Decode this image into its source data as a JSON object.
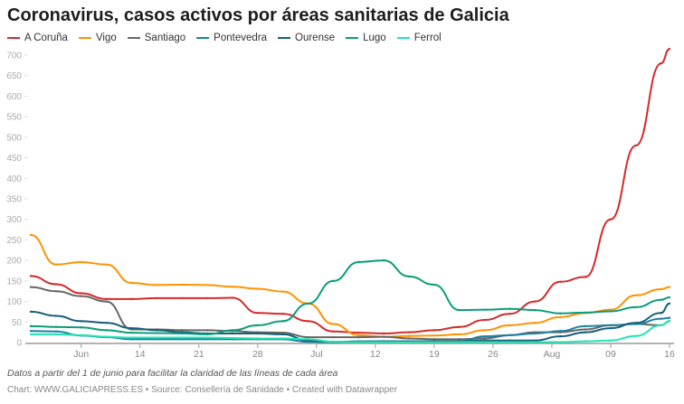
{
  "title": "Coronavirus, casos activos por áreas sanitarias de Galicia",
  "note": "Datos a partir del 1 de junio para facilitar la claridad de las líneas de cada área",
  "source": "Chart: WWW.GALICIAPRESS.ES • Source: Consellería de Sanidade • Created with Datawrapper",
  "chart_data": {
    "type": "line",
    "title": "Coronavirus, casos activos por áreas sanitarias de Galicia",
    "ylim": [
      0,
      720
    ],
    "xlim": [
      "2020-06-01",
      "2020-08-16"
    ],
    "yticks": [
      0,
      50,
      100,
      150,
      200,
      250,
      300,
      350,
      400,
      450,
      500,
      550,
      600,
      650,
      700
    ],
    "xticks": [
      {
        "date": "2020-06-07",
        "label": "Jun"
      },
      {
        "date": "2020-06-14",
        "label": "14"
      },
      {
        "date": "2020-06-21",
        "label": "21"
      },
      {
        "date": "2020-06-28",
        "label": "28"
      },
      {
        "date": "2020-07-05",
        "label": "Jul"
      },
      {
        "date": "2020-07-12",
        "label": "12"
      },
      {
        "date": "2020-07-19",
        "label": "19"
      },
      {
        "date": "2020-07-26",
        "label": "26"
      },
      {
        "date": "2020-08-02",
        "label": "Aug"
      },
      {
        "date": "2020-08-09",
        "label": "09"
      },
      {
        "date": "2020-08-16",
        "label": "16"
      }
    ],
    "grid": false,
    "legend": "top-left",
    "dates": [
      "2020-06-01",
      "2020-06-04",
      "2020-06-07",
      "2020-06-10",
      "2020-06-13",
      "2020-06-16",
      "2020-06-19",
      "2020-06-22",
      "2020-06-25",
      "2020-06-28",
      "2020-07-01",
      "2020-07-04",
      "2020-07-07",
      "2020-07-10",
      "2020-07-13",
      "2020-07-16",
      "2020-07-19",
      "2020-07-22",
      "2020-07-25",
      "2020-07-28",
      "2020-07-31",
      "2020-08-03",
      "2020-08-06",
      "2020-08-09",
      "2020-08-12",
      "2020-08-15",
      "2020-08-16"
    ],
    "series": [
      {
        "name": "A Coruña",
        "color": "#d52a2a",
        "values": [
          162,
          142,
          120,
          106,
          106,
          108,
          108,
          108,
          109,
          72,
          70,
          52,
          27,
          24,
          22,
          25,
          30,
          38,
          55,
          70,
          100,
          148,
          160,
          300,
          480,
          680,
          715
        ]
      },
      {
        "name": "Vigo",
        "color": "#ff9200",
        "values": [
          262,
          190,
          196,
          190,
          145,
          140,
          141,
          140,
          136,
          131,
          124,
          95,
          45,
          18,
          14,
          16,
          17,
          20,
          30,
          42,
          48,
          62,
          72,
          80,
          115,
          130,
          135
        ]
      },
      {
        "name": "Santiago",
        "color": "#656565",
        "values": [
          135,
          125,
          113,
          100,
          32,
          32,
          30,
          30,
          28,
          25,
          24,
          13,
          13,
          13,
          14,
          10,
          8,
          8,
          10,
          18,
          25,
          25,
          32,
          42,
          45,
          42,
          52
        ]
      },
      {
        "name": "Pontevedra",
        "color": "#1d81a2",
        "values": [
          28,
          27,
          17,
          13,
          8,
          8,
          8,
          8,
          8,
          8,
          8,
          2,
          1,
          3,
          3,
          3,
          3,
          3,
          15,
          18,
          22,
          28,
          40,
          42,
          45,
          58,
          60
        ]
      },
      {
        "name": "Ourense",
        "color": "#15607a",
        "values": [
          75,
          65,
          52,
          48,
          35,
          30,
          25,
          22,
          22,
          22,
          20,
          5,
          2,
          2,
          3,
          3,
          3,
          3,
          5,
          5,
          5,
          15,
          25,
          35,
          48,
          72,
          95
        ]
      },
      {
        "name": "Lugo",
        "color": "#0a9d78",
        "values": [
          40,
          38,
          37,
          30,
          24,
          23,
          22,
          20,
          30,
          42,
          52,
          95,
          150,
          196,
          200,
          161,
          141,
          79,
          80,
          82,
          79,
          71,
          73,
          76,
          86,
          104,
          110
        ]
      },
      {
        "name": "Ferrol",
        "color": "#1ee6b4",
        "values": [
          20,
          20,
          18,
          14,
          12,
          12,
          12,
          12,
          11,
          10,
          10,
          8,
          2,
          1,
          1,
          1,
          1,
          1,
          1,
          1,
          1,
          1,
          3,
          5,
          16,
          42,
          52
        ]
      }
    ]
  }
}
